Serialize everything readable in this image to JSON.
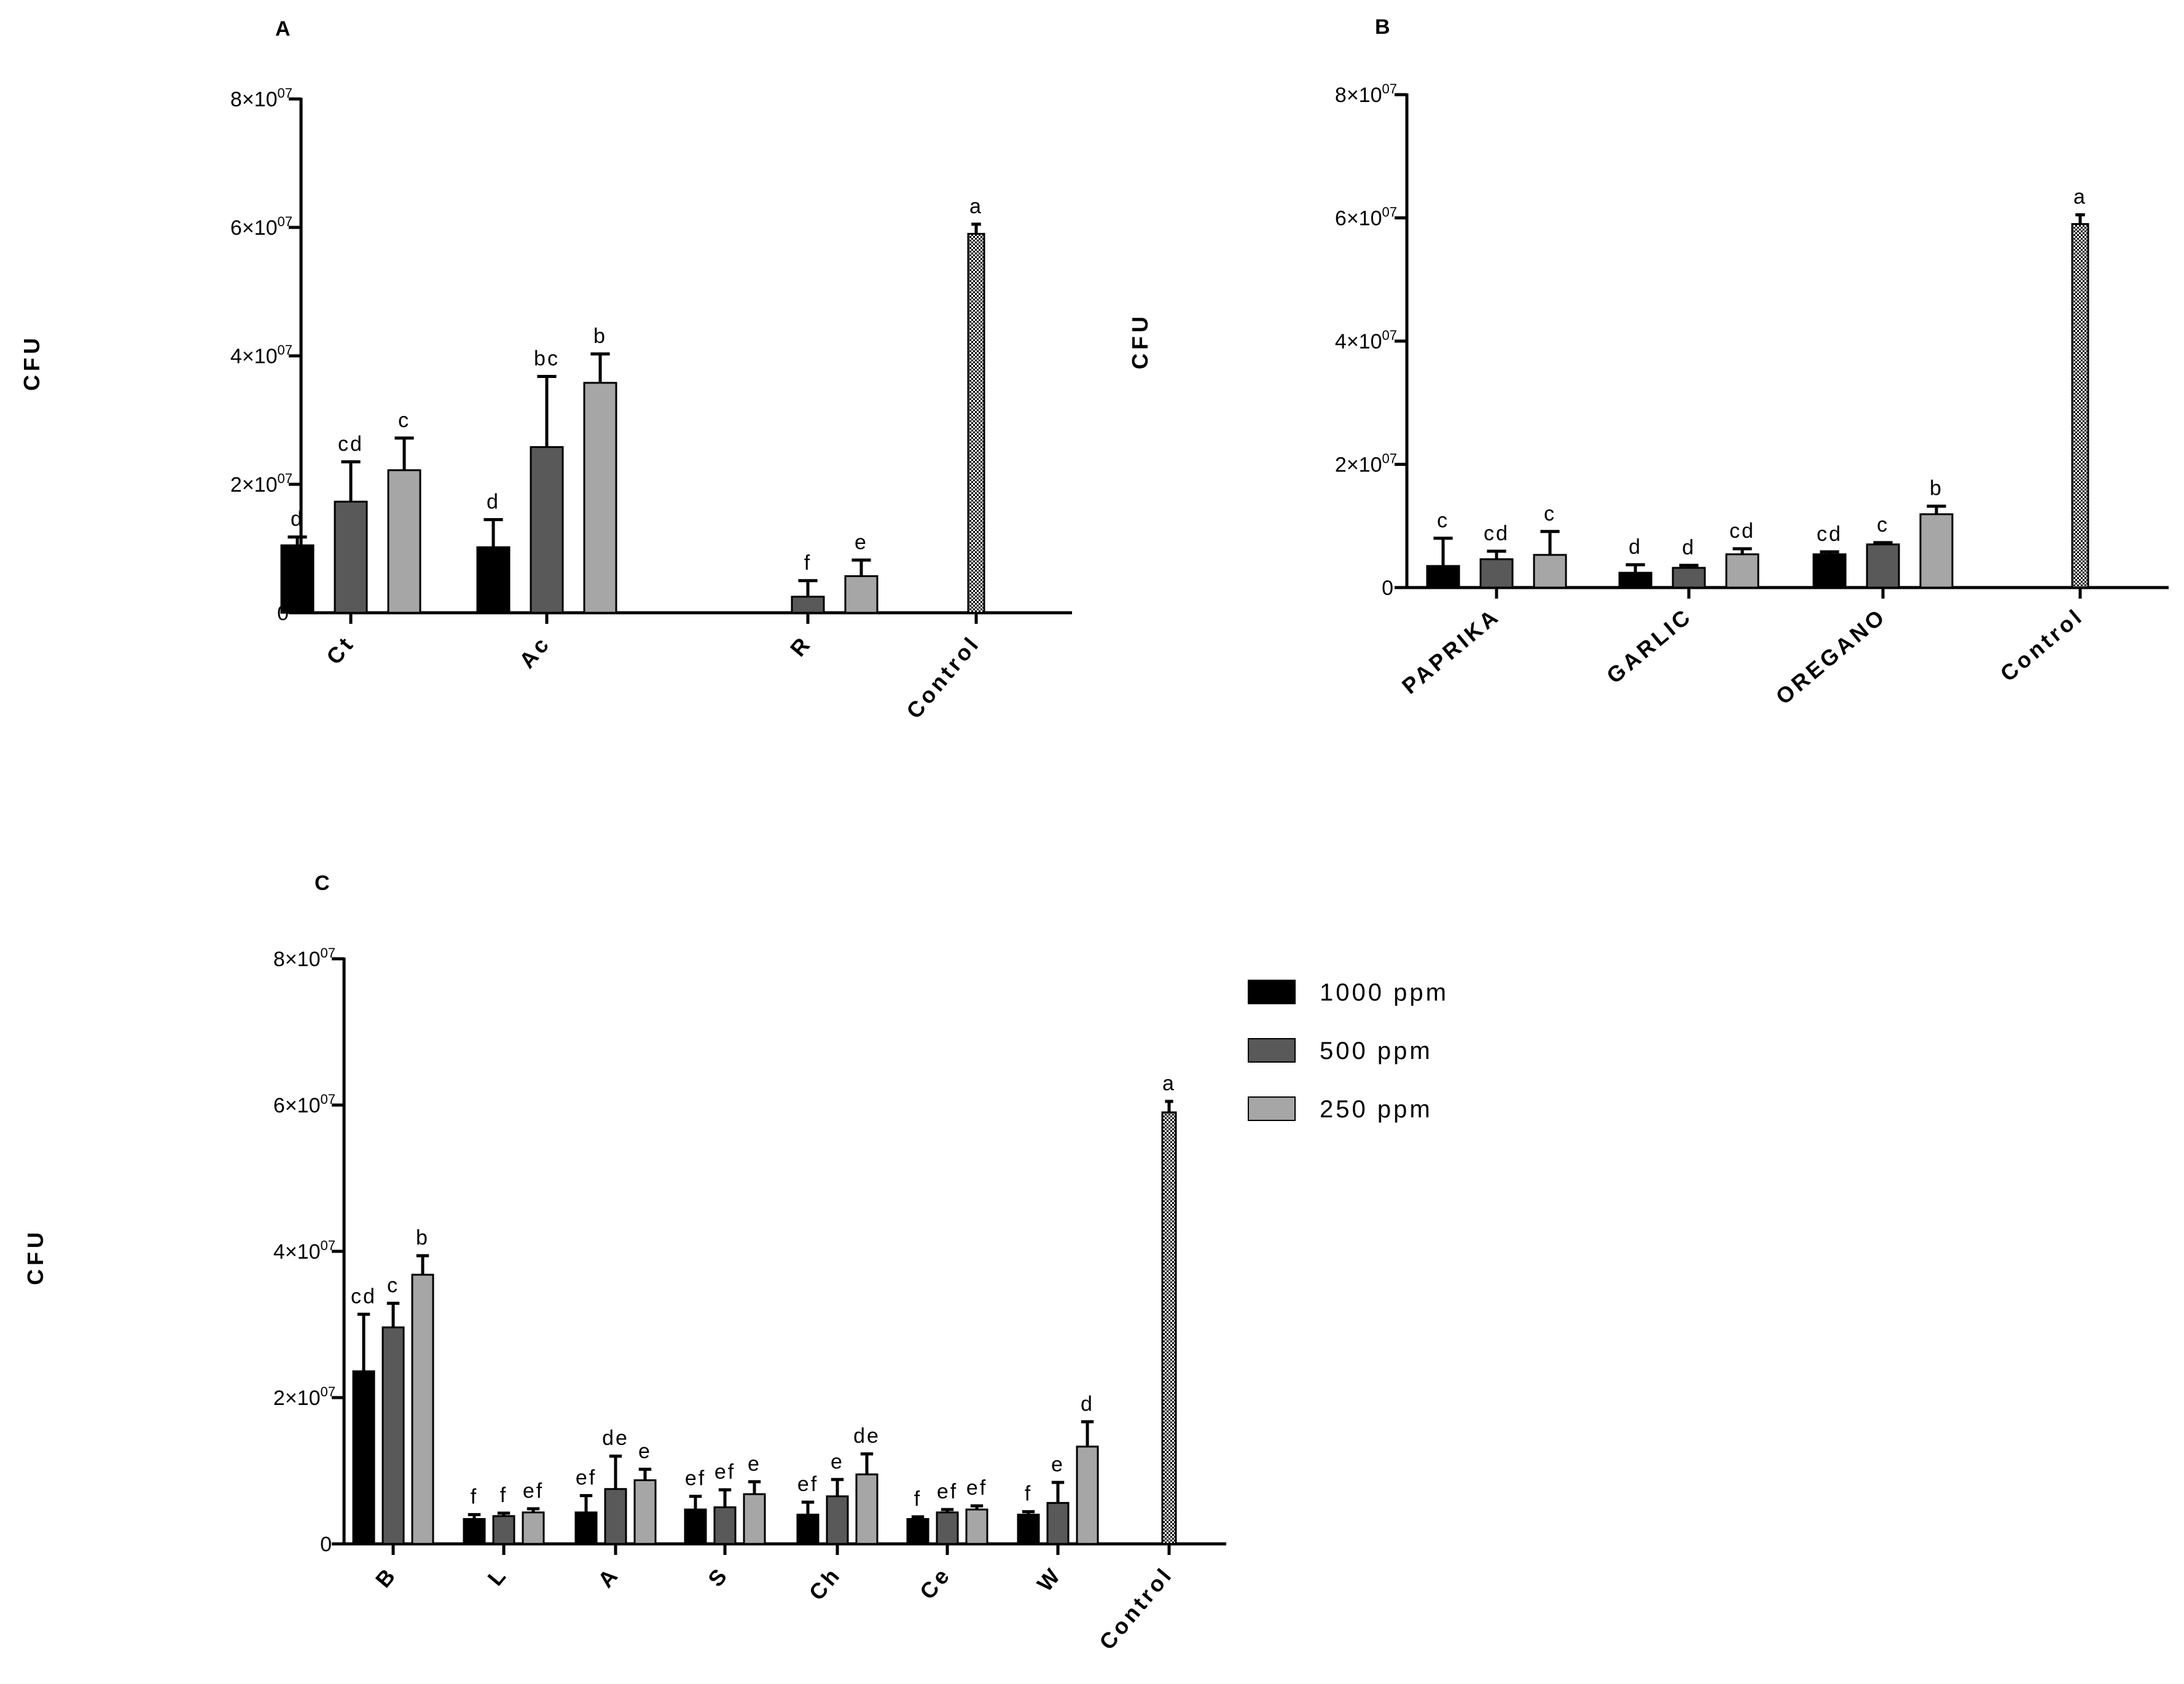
{
  "figure": {
    "legend": {
      "items": [
        {
          "label": "1000 ppm",
          "color": "#000000"
        },
        {
          "label": "500 ppm",
          "color": "#595959"
        },
        {
          "label": "250 ppm",
          "color": "#a6a6a6"
        }
      ]
    },
    "control_color": "#000000",
    "y_ticks": [
      {
        "value": 0,
        "mantissa": "0",
        "exponent": ""
      },
      {
        "value": 20000000,
        "mantissa": "2×10",
        "exponent": "07"
      },
      {
        "value": 40000000,
        "mantissa": "4×10",
        "exponent": "07"
      },
      {
        "value": 60000000,
        "mantissa": "6×10",
        "exponent": "07"
      },
      {
        "value": 80000000,
        "mantissa": "8×10",
        "exponent": "07"
      }
    ]
  },
  "chart_data": [
    {
      "panel": "A",
      "type": "bar",
      "ylabel": "CFU",
      "ylim": [
        0,
        80000000
      ],
      "series_names": [
        "1000 ppm",
        "500 ppm",
        "250 ppm"
      ],
      "categories": [
        {
          "label": "Ct",
          "bars": [
            {
              "series": 0,
              "value": 10500000,
              "err": 1300000,
              "sig": "d"
            },
            {
              "series": 1,
              "value": 17300000,
              "err": 6200000,
              "sig": "cd"
            },
            {
              "series": 2,
              "value": 22200000,
              "err": 5000000,
              "sig": "c"
            }
          ]
        },
        {
          "label": "Ac",
          "bars": [
            {
              "series": 0,
              "value": 10200000,
              "err": 4300000,
              "sig": "d"
            },
            {
              "series": 1,
              "value": 25800000,
              "err": 11000000,
              "sig": "bc"
            },
            {
              "series": 2,
              "value": 35800000,
              "err": 4500000,
              "sig": "b"
            }
          ]
        },
        {
          "label": "R",
          "bars": [
            {
              "series": 1,
              "value": 2500000,
              "err": 2500000,
              "sig": "f"
            },
            {
              "series": 2,
              "value": 5700000,
              "err": 2500000,
              "sig": "e"
            }
          ]
        },
        {
          "label": "Control",
          "bars": [
            {
              "series": 3,
              "value": 59000000,
              "err": 1500000,
              "sig": "a"
            }
          ]
        }
      ]
    },
    {
      "panel": "B",
      "type": "bar",
      "ylabel": "CFU",
      "ylim": [
        0,
        80000000
      ],
      "series_names": [
        "1000 ppm",
        "500 ppm",
        "250 ppm"
      ],
      "categories": [
        {
          "label": "PAPRIKA",
          "bars": [
            {
              "series": 0,
              "value": 3500000,
              "err": 4500000,
              "sig": "c"
            },
            {
              "series": 1,
              "value": 4600000,
              "err": 1300000,
              "sig": "cd"
            },
            {
              "series": 2,
              "value": 5300000,
              "err": 3800000,
              "sig": "c"
            }
          ]
        },
        {
          "label": "GARLIC",
          "bars": [
            {
              "series": 0,
              "value": 2400000,
              "err": 1300000,
              "sig": "d"
            },
            {
              "series": 1,
              "value": 3200000,
              "err": 400000,
              "sig": "d"
            },
            {
              "series": 2,
              "value": 5400000,
              "err": 900000,
              "sig": "cd"
            }
          ]
        },
        {
          "label": "OREGANO",
          "bars": [
            {
              "series": 0,
              "value": 5400000,
              "err": 400000,
              "sig": "cd"
            },
            {
              "series": 1,
              "value": 7000000,
              "err": 300000,
              "sig": "c"
            },
            {
              "series": 2,
              "value": 11900000,
              "err": 1300000,
              "sig": "b"
            }
          ]
        },
        {
          "label": "Control",
          "bars": [
            {
              "series": 3,
              "value": 59000000,
              "err": 1500000,
              "sig": "a"
            }
          ]
        }
      ]
    },
    {
      "panel": "C",
      "type": "bar",
      "ylabel": "CFU",
      "ylim": [
        0,
        80000000
      ],
      "series_names": [
        "1000 ppm",
        "500 ppm",
        "250 ppm"
      ],
      "categories": [
        {
          "label": "B",
          "bars": [
            {
              "series": 0,
              "value": 23600000,
              "err": 7800000,
              "sig": "cd"
            },
            {
              "series": 1,
              "value": 29600000,
              "err": 3300000,
              "sig": "c"
            },
            {
              "series": 2,
              "value": 36800000,
              "err": 2600000,
              "sig": "b"
            }
          ]
        },
        {
          "label": "L",
          "bars": [
            {
              "series": 0,
              "value": 3400000,
              "err": 600000,
              "sig": "f"
            },
            {
              "series": 1,
              "value": 3800000,
              "err": 400000,
              "sig": "f"
            },
            {
              "series": 2,
              "value": 4300000,
              "err": 500000,
              "sig": "ef"
            }
          ]
        },
        {
          "label": "A",
          "bars": [
            {
              "series": 0,
              "value": 4300000,
              "err": 2300000,
              "sig": "ef"
            },
            {
              "series": 1,
              "value": 7500000,
              "err": 4500000,
              "sig": "de"
            },
            {
              "series": 2,
              "value": 8700000,
              "err": 1500000,
              "sig": "e"
            }
          ]
        },
        {
          "label": "S",
          "bars": [
            {
              "series": 0,
              "value": 4700000,
              "err": 1800000,
              "sig": "ef"
            },
            {
              "series": 1,
              "value": 5000000,
              "err": 2400000,
              "sig": "ef"
            },
            {
              "series": 2,
              "value": 6800000,
              "err": 1700000,
              "sig": "e"
            }
          ]
        },
        {
          "label": "Ch",
          "bars": [
            {
              "series": 0,
              "value": 4000000,
              "err": 1700000,
              "sig": "ef"
            },
            {
              "series": 1,
              "value": 6500000,
              "err": 2300000,
              "sig": "e"
            },
            {
              "series": 2,
              "value": 9500000,
              "err": 2800000,
              "sig": "de"
            }
          ]
        },
        {
          "label": "Ce",
          "bars": [
            {
              "series": 0,
              "value": 3400000,
              "err": 300000,
              "sig": "f"
            },
            {
              "series": 1,
              "value": 4300000,
              "err": 400000,
              "sig": "ef"
            },
            {
              "series": 2,
              "value": 4700000,
              "err": 500000,
              "sig": "ef"
            }
          ]
        },
        {
          "label": "W",
          "bars": [
            {
              "series": 0,
              "value": 4000000,
              "err": 400000,
              "sig": "f"
            },
            {
              "series": 1,
              "value": 5600000,
              "err": 2800000,
              "sig": "e"
            },
            {
              "series": 2,
              "value": 13300000,
              "err": 3400000,
              "sig": "d"
            }
          ]
        },
        {
          "label": "Control",
          "bars": [
            {
              "series": 3,
              "value": 59000000,
              "err": 1500000,
              "sig": "a"
            }
          ]
        }
      ]
    }
  ]
}
